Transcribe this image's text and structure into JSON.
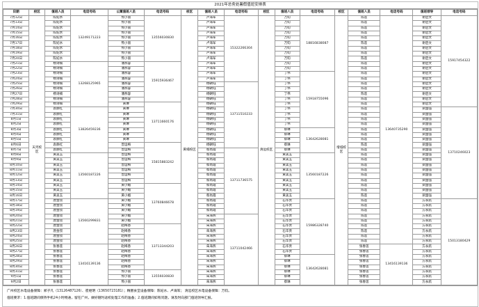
{
  "title": "2021年总务处暑假值班安排表",
  "headers": [
    "日期",
    "校区",
    "值班人员",
    "电话号码",
    "公寓值班人员",
    "电话号码",
    "校区",
    "值班人员",
    "电话号码",
    "校区",
    "值班人员",
    "电话号码",
    "校区",
    "值班人员",
    "电话号码",
    "值班领导",
    "电话号码"
  ],
  "dates": [
    "7月12日",
    "7月13日",
    "7月14日",
    "7月15日",
    "7月16日",
    "7月17日",
    "7月18日",
    "7月19日",
    "7月20日",
    "7月21日",
    "7月22日",
    "7月23日",
    "7月24日",
    "7月25日",
    "7月26日",
    "7月27日",
    "7月28日",
    "7月29日",
    "7月30日",
    "7月31日",
    "8月1日",
    "8月2日",
    "8月3日",
    "8月4日",
    "8月5日",
    "8月6日",
    "8月7日",
    "8月8日",
    "8月9日",
    "8月10日",
    "8月11日",
    "8月12日",
    "8月13日",
    "8月14日",
    "8月15日",
    "8月16日",
    "8月17日",
    "8月18日",
    "8月19日",
    "8月20日",
    "8月21日",
    "8月22日",
    "8月23日",
    "8月24日",
    "8月25日",
    "8月26日",
    "8月27日",
    "8月28日",
    "8月29日",
    "8月30日",
    "8月31日",
    "9月1日",
    "9月2日"
  ],
  "columns": [
    {
      "kind": "merge",
      "wrap": true,
      "segs": [
        {
          "v": "天河校区",
          "n": 53
        }
      ]
    },
    {
      "kind": "repeat",
      "segs": [
        {
          "v": "陈妃水",
          "n": 9
        },
        {
          "v": "杨诗楠",
          "n": 9
        },
        {
          "v": "袁静红",
          "n": 9
        },
        {
          "v": "黄美玉",
          "n": 9
        },
        {
          "v": "唐金钗",
          "n": 9
        },
        {
          "v": "张春莲",
          "n": 8
        }
      ]
    },
    {
      "kind": "merge",
      "segs": [
        {
          "v": "13249171223",
          "n": 9
        },
        {
          "v": "13268125965",
          "n": 9
        },
        {
          "v": "13826459236",
          "n": 9
        },
        {
          "v": "13560187226",
          "n": 9
        },
        {
          "v": "13560299831",
          "n": 9
        },
        {
          "v": "13416139136",
          "n": 8
        }
      ]
    },
    {
      "kind": "repeat",
      "segs": [
        {
          "v": "熊小丽",
          "n": 9
        },
        {
          "v": "潘燕容",
          "n": 8
        },
        {
          "v": "黄琳",
          "n": 8
        },
        {
          "v": "曾运梅",
          "n": 8
        },
        {
          "v": "黄小媚",
          "n": 8
        },
        {
          "v": "赵梅香",
          "n": 9
        },
        {
          "v": "熊小丽",
          "n": 3
        }
      ]
    },
    {
      "kind": "merge",
      "segs": [
        {
          "v": "13556030830",
          "n": 9
        },
        {
          "v": "15915936467",
          "n": 8
        },
        {
          "v": "13711660176",
          "n": 8
        },
        {
          "v": "15815883242",
          "n": 8
        },
        {
          "v": "13760846678",
          "n": 8
        },
        {
          "v": "13713344203",
          "n": 9
        },
        {
          "v": "13556030830",
          "n": 3
        }
      ]
    },
    {
      "kind": "merge",
      "wrap": true,
      "segs": [
        {
          "v": "黄埔校区",
          "n": 53
        }
      ]
    },
    {
      "kind": "repeat",
      "segs": [
        {
          "v": "卢海军",
          "n": 13
        },
        {
          "v": "杨朝钰",
          "n": 13
        },
        {
          "v": "蔡尚霞",
          "n": 13
        },
        {
          "v": "朱海燕",
          "n": 14
        }
      ]
    },
    {
      "kind": "merge",
      "segs": [
        {
          "v": "15322266304",
          "n": 13
        },
        {
          "v": "13711510233",
          "n": 13
        },
        {
          "v": "13711736575",
          "n": 13
        },
        {
          "v": "13711042466",
          "n": 14
        }
      ]
    },
    {
      "kind": "merge",
      "wrap": true,
      "segs": [
        {
          "v": "清远校区",
          "n": 53
        }
      ]
    },
    {
      "kind": "repeat",
      "segs": [
        {
          "v": "万钧",
          "n": 11
        },
        {
          "v": "丁伟",
          "n": 11
        },
        {
          "v": "蔡琳",
          "n": 5
        },
        {
          "v": "黄美玉",
          "n": 9
        },
        {
          "v": "石华贵",
          "n": 11
        },
        {
          "v": "蔡琳",
          "n": 6
        }
      ]
    },
    {
      "kind": "merge",
      "segs": [
        {
          "v": "18816838087",
          "n": 11
        },
        {
          "v": "15918755096",
          "n": 11
        },
        {
          "v": "13642628081",
          "n": 5
        },
        {
          "v": "13560187226",
          "n": 9
        },
        {
          "v": "15986328740",
          "n": 11
        },
        {
          "v": "13642628081",
          "n": 6
        }
      ]
    },
    {
      "kind": "merge",
      "wrap": true,
      "segs": [
        {
          "v": "增城校区",
          "n": 53
        }
      ]
    },
    {
      "kind": "repeat",
      "segs": [
        {
          "v": "陈莲",
          "n": 45
        },
        {
          "v": "张春莲",
          "n": 8
        }
      ]
    },
    {
      "kind": "merge",
      "segs": [
        {
          "v": "13640735290",
          "n": 45
        },
        {
          "v": "13416139136",
          "n": 8
        }
      ]
    },
    {
      "kind": "repeat",
      "segs": [
        {
          "v": "谢启文",
          "n": 18
        },
        {
          "v": "梁国强",
          "n": 18
        },
        {
          "v": "方永航",
          "n": 17
        }
      ]
    },
    {
      "kind": "merge",
      "segs": [
        {
          "v": "15917454322",
          "n": 18
        },
        {
          "v": "13710246023",
          "n": 18
        },
        {
          "v": "15013180429",
          "n": 17
        }
      ]
    }
  ],
  "footer": {
    "line1": "广州校区水电设备保障：郑子凡（13126487126）、崔继明（13650723181）；精膳食堂设备保障：陈妃水、卢海军；   清远校区水电设备保障：万钧。",
    "line2": "值班要求：1.值班期间保持手机24小时畅通，留在广州，做好随时返校处理工作的准备；2.值班期间如有问题，请及时向部门值班领导汇报。"
  }
}
